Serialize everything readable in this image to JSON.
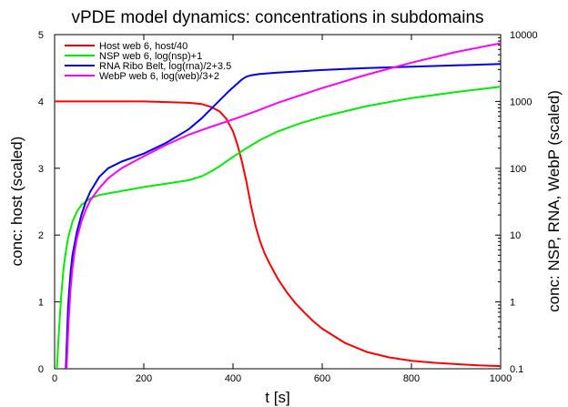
{
  "chart_data": {
    "type": "line",
    "title": "vPDE model dynamics: concentrations in subdomains",
    "xlabel": "t [s]",
    "ylabel": "conc: host (scaled)",
    "y2label": "conc: NSP, RNA, WebP (scaled)",
    "xlim": [
      0,
      1000
    ],
    "ylim": [
      0,
      5
    ],
    "y2lim": [
      0.1,
      10000
    ],
    "y2_scale": "log",
    "x_ticks": [
      "0",
      "200",
      "400",
      "600",
      "800",
      "1000"
    ],
    "y_ticks": [
      "0",
      "1",
      "2",
      "3",
      "4",
      "5"
    ],
    "y2_ticks": [
      "0.1",
      "1",
      "10",
      "100",
      "1000",
      "10000"
    ],
    "legend_position": "top-left",
    "grid": false,
    "series": [
      {
        "name": "Host web 6, host/40",
        "color": "#ff0000",
        "x": [
          0,
          100,
          200,
          250,
          300,
          330,
          350,
          370,
          385,
          400,
          410,
          420,
          430,
          440,
          450,
          460,
          470,
          480,
          500,
          520,
          540,
          560,
          580,
          600,
          650,
          700,
          750,
          800,
          850,
          900,
          950,
          1000
        ],
        "values": [
          4.0,
          4.0,
          4.0,
          3.99,
          3.98,
          3.96,
          3.92,
          3.85,
          3.74,
          3.55,
          3.35,
          3.1,
          2.8,
          2.45,
          2.15,
          1.92,
          1.74,
          1.6,
          1.35,
          1.15,
          0.98,
          0.84,
          0.71,
          0.6,
          0.39,
          0.25,
          0.17,
          0.12,
          0.09,
          0.07,
          0.05,
          0.04
        ]
      },
      {
        "name": "NSP web 6, log(nsp)+1",
        "color": "#00ee00",
        "x": [
          5,
          10,
          15,
          20,
          25,
          30,
          40,
          50,
          60,
          70,
          80,
          100,
          150,
          200,
          250,
          300,
          330,
          350,
          370,
          400,
          430,
          460,
          500,
          550,
          600,
          650,
          700,
          800,
          900,
          1000
        ],
        "values": [
          0.0,
          0.6,
          1.1,
          1.5,
          1.75,
          1.95,
          2.2,
          2.35,
          2.45,
          2.5,
          2.55,
          2.6,
          2.66,
          2.72,
          2.77,
          2.82,
          2.88,
          2.95,
          3.03,
          3.17,
          3.3,
          3.42,
          3.55,
          3.67,
          3.77,
          3.85,
          3.93,
          4.05,
          4.14,
          4.22
        ]
      },
      {
        "name": "RNA Ribo Belt, log(rna)/2+3.5",
        "color": "#0000ee",
        "x": [
          25,
          28,
          30,
          33,
          36,
          40,
          50,
          60,
          70,
          80,
          100,
          120,
          150,
          200,
          250,
          300,
          330,
          360,
          390,
          410,
          420,
          430,
          440,
          460,
          500,
          600,
          700,
          800,
          900,
          1000
        ],
        "values": [
          0.0,
          0.5,
          0.9,
          1.2,
          1.45,
          1.7,
          2.05,
          2.3,
          2.5,
          2.65,
          2.87,
          3.0,
          3.1,
          3.22,
          3.38,
          3.58,
          3.75,
          3.95,
          4.15,
          4.27,
          4.33,
          4.37,
          4.39,
          4.41,
          4.43,
          4.47,
          4.5,
          4.52,
          4.54,
          4.56
        ]
      },
      {
        "name": "WebP web 6, log(web)/3+2",
        "color": "#ff00ff",
        "x": [
          27,
          30,
          33,
          36,
          40,
          45,
          50,
          60,
          70,
          80,
          100,
          120,
          150,
          200,
          250,
          300,
          350,
          400,
          450,
          500,
          600,
          700,
          800,
          900,
          1000
        ],
        "values": [
          0.0,
          0.5,
          0.9,
          1.2,
          1.5,
          1.75,
          1.95,
          2.2,
          2.38,
          2.52,
          2.7,
          2.85,
          3.0,
          3.18,
          3.35,
          3.5,
          3.62,
          3.73,
          3.85,
          3.98,
          4.2,
          4.4,
          4.58,
          4.74,
          4.87
        ]
      }
    ]
  }
}
